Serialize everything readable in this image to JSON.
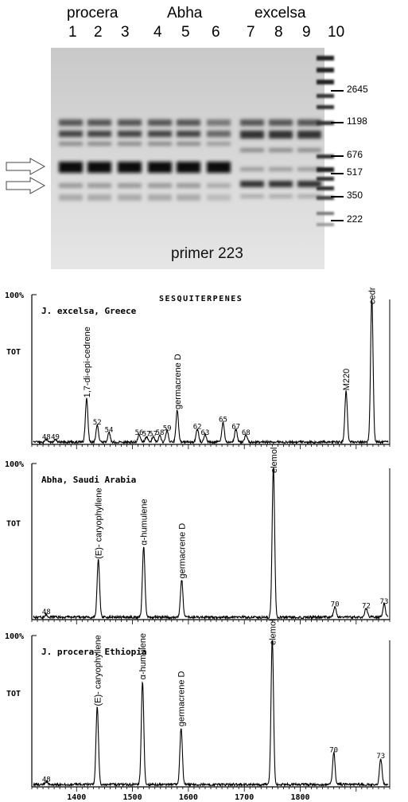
{
  "gel": {
    "groups": [
      "procera",
      "Abha",
      "excelsa"
    ],
    "lanes": [
      "1",
      "2",
      "3",
      "4",
      "5",
      "6",
      "7",
      "8",
      "9",
      "10"
    ],
    "marker_sizes": [
      "2645",
      "1198",
      "676",
      "517",
      "350",
      "222"
    ],
    "caption": "primer 223"
  },
  "chart_data": [
    {
      "type": "line",
      "title": "SESQUITERPENES",
      "subtitle": "J. excelsa, Greece",
      "y_top_label": "100%",
      "y_mid_label": "TOT",
      "xlim": [
        1320,
        1960
      ],
      "ylim": [
        0,
        100
      ],
      "peaks": [
        {
          "x": 1418,
          "y": 30,
          "label": "1,7-di-epi-cedrene"
        },
        {
          "x": 1437,
          "y": 12,
          "label": "52"
        },
        {
          "x": 1458,
          "y": 7,
          "label": "54"
        },
        {
          "x": 1512,
          "y": 5,
          "label": "56"
        },
        {
          "x": 1525,
          "y": 4,
          "label": "57"
        },
        {
          "x": 1537,
          "y": 4,
          "label": "57"
        },
        {
          "x": 1549,
          "y": 5,
          "label": "58"
        },
        {
          "x": 1562,
          "y": 8,
          "label": "59"
        },
        {
          "x": 1580,
          "y": 22,
          "label": "germacrene D"
        },
        {
          "x": 1616,
          "y": 9,
          "label": "62"
        },
        {
          "x": 1630,
          "y": 5,
          "label": "63"
        },
        {
          "x": 1662,
          "y": 14,
          "label": "65"
        },
        {
          "x": 1685,
          "y": 9,
          "label": "67"
        },
        {
          "x": 1703,
          "y": 5,
          "label": "68"
        },
        {
          "x": 1346,
          "y": 2,
          "label": "48"
        },
        {
          "x": 1362,
          "y": 2,
          "label": "49"
        },
        {
          "x": 1882,
          "y": 35,
          "label": "M220"
        },
        {
          "x": 1928,
          "y": 100,
          "label": "cedrol"
        }
      ]
    },
    {
      "type": "line",
      "subtitle": "Abha, Saudi Arabia",
      "y_top_label": "100%",
      "y_mid_label": "TOT",
      "xlim": [
        1320,
        1960
      ],
      "ylim": [
        0,
        100
      ],
      "peaks": [
        {
          "x": 1346,
          "y": 2,
          "label": "48"
        },
        {
          "x": 1439,
          "y": 38,
          "label": "(E)- caryophyllene"
        },
        {
          "x": 1520,
          "y": 47,
          "label": "α-humulene"
        },
        {
          "x": 1588,
          "y": 25,
          "label": "germacrene D"
        },
        {
          "x": 1752,
          "y": 100,
          "label": "elemol"
        },
        {
          "x": 1862,
          "y": 7,
          "label": "70"
        },
        {
          "x": 1918,
          "y": 6,
          "label": "72"
        },
        {
          "x": 1950,
          "y": 9,
          "label": "73"
        }
      ]
    },
    {
      "type": "line",
      "subtitle": "J. procera, Ethiopia",
      "y_top_label": "100%",
      "y_mid_label": "TOT",
      "xlim": [
        1320,
        1960
      ],
      "ylim": [
        0,
        100
      ],
      "x_ticks": [
        "1400",
        "1500",
        "1600",
        "1700",
        "1800"
      ],
      "peaks": [
        {
          "x": 1346,
          "y": 2,
          "label": "48"
        },
        {
          "x": 1437,
          "y": 53,
          "label": "(E)- caryophyllene"
        },
        {
          "x": 1518,
          "y": 71,
          "label": "α-humulene"
        },
        {
          "x": 1587,
          "y": 39,
          "label": "germacrene D"
        },
        {
          "x": 1750,
          "y": 100,
          "label": "elemol"
        },
        {
          "x": 1860,
          "y": 22,
          "label": "70"
        },
        {
          "x": 1944,
          "y": 18,
          "label": "73"
        }
      ]
    }
  ]
}
